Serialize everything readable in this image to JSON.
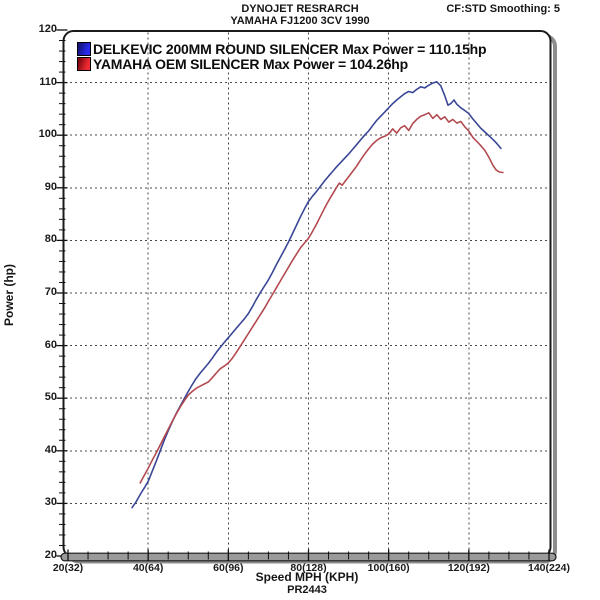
{
  "header": {
    "title_line1": "DYNOJET RESRARCH",
    "title_line2": "YAMAHA FJ1200 3CV 1990",
    "smoothing_info": "CF:STD Smoothing: 5"
  },
  "legend": {
    "items": [
      {
        "label": "DELKEVIC 200MM ROUND SILENCER Max Power = 110.15hp",
        "swatch_dark": "#15157a",
        "swatch_bright": "#2a2af0"
      },
      {
        "label": "YAMAHA OEM SILENCER Max Power = 104.26hp",
        "swatch_dark": "#82080f",
        "swatch_bright": "#f02a34"
      }
    ]
  },
  "axes": {
    "y_label": "Power (hp)",
    "x_label": "Speed MPH (KPH)",
    "footer": "PR2443"
  },
  "chart_data": {
    "type": "line",
    "title": "DYNOJET RESRARCH - YAMAHA FJ1200 3CV 1990",
    "xlabel": "Speed MPH (KPH)",
    "ylabel": "Power (hp)",
    "xlim": [
      20,
      140
    ],
    "ylim": [
      20,
      120
    ],
    "grid": true,
    "x_major_step": 20,
    "x_minor_step": 5,
    "y_major_step": 10,
    "y_minor_step": 2,
    "x_ticks": [
      20,
      40,
      60,
      80,
      100,
      120,
      140
    ],
    "x_tick_labels": [
      "20(32)",
      "40(64)",
      "60(96)",
      "80(128)",
      "100(160)",
      "120(192)",
      "140(224)"
    ],
    "y_ticks": [
      20,
      30,
      40,
      50,
      60,
      70,
      80,
      90,
      100,
      110,
      120
    ],
    "legend_position": "top-left",
    "series": [
      {
        "name": "DELKEVIC 200MM ROUND SILENCER",
        "max_power_hp": 110.15,
        "line_color": "#3a4796",
        "points": [
          [
            36,
            29.2
          ],
          [
            37,
            30.3
          ],
          [
            38,
            31.7
          ],
          [
            39,
            32.9
          ],
          [
            40,
            34.2
          ],
          [
            41,
            36.1
          ],
          [
            42,
            38.0
          ],
          [
            43,
            40.0
          ],
          [
            44,
            42.0
          ],
          [
            45,
            43.8
          ],
          [
            46,
            45.5
          ],
          [
            47,
            47.1
          ],
          [
            48,
            48.5
          ],
          [
            49,
            49.9
          ],
          [
            50,
            51.3
          ],
          [
            51,
            52.6
          ],
          [
            52,
            53.8
          ],
          [
            53,
            54.8
          ],
          [
            54,
            55.7
          ],
          [
            55,
            56.6
          ],
          [
            56,
            57.6
          ],
          [
            57,
            58.7
          ],
          [
            58,
            59.7
          ],
          [
            59,
            60.6
          ],
          [
            60,
            61.5
          ],
          [
            61,
            62.4
          ],
          [
            62,
            63.3
          ],
          [
            63,
            64.2
          ],
          [
            64,
            65.1
          ],
          [
            65,
            66.1
          ],
          [
            66,
            67.4
          ],
          [
            67,
            68.8
          ],
          [
            68,
            70.1
          ],
          [
            69,
            71.3
          ],
          [
            70,
            72.5
          ],
          [
            71,
            73.9
          ],
          [
            72,
            75.4
          ],
          [
            73,
            76.8
          ],
          [
            74,
            78.2
          ],
          [
            75,
            79.7
          ],
          [
            76,
            81.3
          ],
          [
            77,
            82.9
          ],
          [
            78,
            84.5
          ],
          [
            79,
            86.0
          ],
          [
            80,
            87.4
          ],
          [
            81,
            88.4
          ],
          [
            82,
            89.3
          ],
          [
            83,
            90.3
          ],
          [
            84,
            91.3
          ],
          [
            85,
            92.2
          ],
          [
            86,
            93.1
          ],
          [
            87,
            94.0
          ],
          [
            88,
            94.8
          ],
          [
            89,
            95.6
          ],
          [
            90,
            96.4
          ],
          [
            91,
            97.3
          ],
          [
            92,
            98.2
          ],
          [
            93,
            99.1
          ],
          [
            94,
            100.0
          ],
          [
            95,
            100.8
          ],
          [
            96,
            101.8
          ],
          [
            97,
            102.8
          ],
          [
            98,
            103.6
          ],
          [
            99,
            104.4
          ],
          [
            100,
            105.2
          ],
          [
            101,
            106.0
          ],
          [
            102,
            106.7
          ],
          [
            103,
            107.3
          ],
          [
            104,
            107.9
          ],
          [
            105,
            108.3
          ],
          [
            106,
            108.1
          ],
          [
            107,
            108.7
          ],
          [
            108,
            109.2
          ],
          [
            109,
            109.0
          ],
          [
            110,
            109.5
          ],
          [
            111,
            109.9
          ],
          [
            112,
            110.15
          ],
          [
            113,
            109.4
          ],
          [
            114,
            107.5
          ],
          [
            114.8,
            105.7
          ],
          [
            115.5,
            106.0
          ],
          [
            116.3,
            106.7
          ],
          [
            117,
            105.9
          ],
          [
            118,
            105.2
          ],
          [
            119,
            104.7
          ],
          [
            120,
            104.1
          ],
          [
            121,
            103.1
          ],
          [
            122,
            102.2
          ],
          [
            123,
            101.3
          ],
          [
            124,
            100.6
          ],
          [
            125,
            99.9
          ],
          [
            126,
            99.2
          ],
          [
            127,
            98.4
          ],
          [
            128,
            97.5
          ]
        ]
      },
      {
        "name": "YAMAHA OEM SILENCER",
        "max_power_hp": 104.26,
        "line_color": "#b34a50",
        "points": [
          [
            38,
            33.9
          ],
          [
            39,
            35.3
          ],
          [
            40,
            36.7
          ],
          [
            41,
            38.2
          ],
          [
            42,
            39.6
          ],
          [
            43,
            41.1
          ],
          [
            44,
            42.6
          ],
          [
            45,
            44.1
          ],
          [
            46,
            45.6
          ],
          [
            47,
            47.0
          ],
          [
            48,
            48.3
          ],
          [
            49,
            49.5
          ],
          [
            50,
            50.6
          ],
          [
            51,
            51.3
          ],
          [
            52,
            51.9
          ],
          [
            53,
            52.3
          ],
          [
            54,
            52.7
          ],
          [
            55,
            53.1
          ],
          [
            56,
            53.9
          ],
          [
            57,
            54.8
          ],
          [
            58,
            55.6
          ],
          [
            59,
            56.1
          ],
          [
            60,
            56.7
          ],
          [
            61,
            57.6
          ],
          [
            62,
            58.7
          ],
          [
            63,
            59.9
          ],
          [
            64,
            61.1
          ],
          [
            65,
            62.3
          ],
          [
            66,
            63.5
          ],
          [
            67,
            64.7
          ],
          [
            68,
            65.9
          ],
          [
            69,
            67.1
          ],
          [
            70,
            68.4
          ],
          [
            71,
            69.7
          ],
          [
            72,
            71.0
          ],
          [
            73,
            72.3
          ],
          [
            74,
            73.6
          ],
          [
            75,
            74.9
          ],
          [
            76,
            76.2
          ],
          [
            77,
            77.4
          ],
          [
            78,
            78.6
          ],
          [
            79,
            79.5
          ],
          [
            80,
            80.4
          ],
          [
            81,
            81.7
          ],
          [
            82,
            83.1
          ],
          [
            83,
            84.6
          ],
          [
            84,
            86.1
          ],
          [
            85,
            87.5
          ],
          [
            86,
            88.8
          ],
          [
            87,
            90.1
          ],
          [
            87.7,
            90.9
          ],
          [
            88.4,
            90.5
          ],
          [
            89,
            91.1
          ],
          [
            90,
            92.1
          ],
          [
            91,
            93.1
          ],
          [
            92,
            94.1
          ],
          [
            93,
            95.3
          ],
          [
            94,
            96.4
          ],
          [
            95,
            97.4
          ],
          [
            96,
            98.3
          ],
          [
            97,
            99.0
          ],
          [
            98,
            99.5
          ],
          [
            99,
            99.8
          ],
          [
            100,
            100.2
          ],
          [
            101,
            101.2
          ],
          [
            102,
            100.4
          ],
          [
            103,
            101.4
          ],
          [
            104,
            101.8
          ],
          [
            105,
            100.9
          ],
          [
            106,
            102.2
          ],
          [
            107,
            103.0
          ],
          [
            108,
            103.6
          ],
          [
            109,
            103.9
          ],
          [
            110,
            104.26
          ],
          [
            111,
            103.2
          ],
          [
            112,
            103.9
          ],
          [
            113,
            103.0
          ],
          [
            114,
            103.5
          ],
          [
            115,
            102.5
          ],
          [
            116,
            103.0
          ],
          [
            117,
            102.3
          ],
          [
            118,
            102.6
          ],
          [
            119,
            101.6
          ],
          [
            120,
            100.8
          ],
          [
            121,
            99.6
          ],
          [
            122,
            98.8
          ],
          [
            123,
            98.0
          ],
          [
            124,
            97.1
          ],
          [
            125,
            95.8
          ],
          [
            126,
            94.3
          ],
          [
            126.8,
            93.4
          ],
          [
            127.6,
            93.0
          ],
          [
            128.5,
            92.9
          ]
        ]
      }
    ]
  }
}
